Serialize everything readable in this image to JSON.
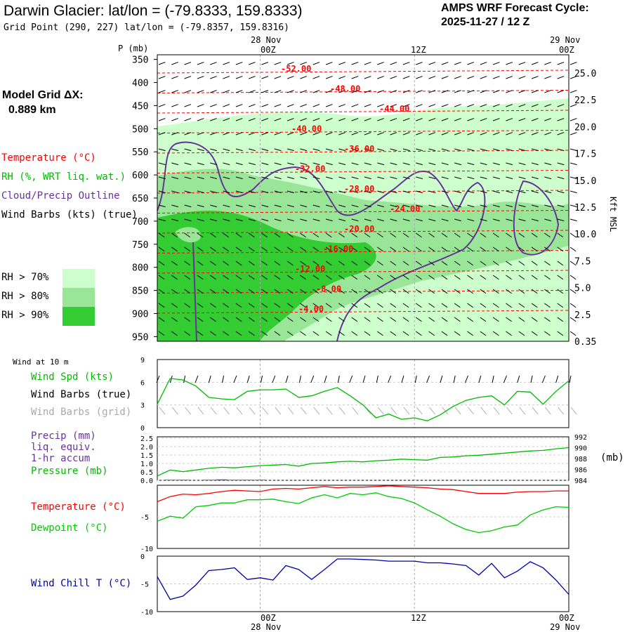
{
  "header": {
    "title": "Darwin Glacier:  lat/lon = (-79.8333, 159.8333)",
    "grid_point": "Grid Point (290, 227) lat/lon = (-79.8357, 159.8316)",
    "cycle_line1": "AMPS WRF Forecast Cycle:",
    "cycle_line2": "2025-11-27 / 12  Z"
  },
  "left_panel": {
    "model_grid_label": "Model Grid ΔX:",
    "model_grid_value": "0.889 km",
    "temperature_label": "Temperature (°C)",
    "rh_label": "RH (%, WRT liq. wat.)",
    "cloud_label": "Cloud/Precip Outline",
    "wind_label": "Wind Barbs (kts) (true)",
    "rh70": "RH > 70%",
    "rh80": "RH > 80%",
    "rh90": "RH > 90%"
  },
  "colors": {
    "rh70": "#ccffcc",
    "rh80": "#99e699",
    "rh90": "#33cc33",
    "temperature": "#ff0000",
    "cloud": "#663399",
    "wind_speed": "#00bb00",
    "dewpoint": "#00cc00",
    "wind_chill": "#0000aa",
    "grid_barbs": "#aaaaaa",
    "precip": "#663399"
  },
  "time_axis": {
    "top_dates": [
      "28 Nov",
      "29 Nov"
    ],
    "ticks": [
      "00Z",
      "12Z",
      "00Z"
    ],
    "bottom_dates": [
      "28 Nov",
      "29 Nov"
    ]
  },
  "chart_data": [
    {
      "type": "area",
      "name": "time-height cross section",
      "xlabel": "",
      "ylabel": "P (mb)",
      "y2label": "Kft MSL",
      "pressure_ticks": [
        "350",
        "400",
        "450",
        "500",
        "550",
        "600",
        "650",
        "700",
        "750",
        "800",
        "850",
        "900",
        "950"
      ],
      "height_ticks": [
        "25.0",
        "22.5",
        "20.0",
        "17.5",
        "15.0",
        "12.5",
        "10.0",
        "7.5",
        "5.0",
        "2.5",
        "0.35"
      ],
      "temperature_labels": [
        "-52.00",
        "-48.00",
        "-44.00",
        "-40.00",
        "-36.00",
        "-32.00",
        "-28.00",
        "-24.00",
        "-20.00",
        "-16.00",
        "-12.00",
        "-8.00",
        "-4.00"
      ],
      "temperature_values": [
        -52,
        -48,
        -44,
        -40,
        -36,
        -32,
        -28,
        -24,
        -20,
        -16,
        -12,
        -8,
        -4
      ]
    },
    {
      "type": "line",
      "name": "Wind at 10 m",
      "panel_title": "Wind at 10 m",
      "legend": [
        "Wind Spd (kts)",
        "Wind Barbs (true)",
        "Wind Barbs (grid)"
      ],
      "y_ticks": [
        "9",
        "6",
        "3",
        "0"
      ],
      "ylim": [
        0,
        9
      ],
      "series": [
        {
          "values": [
            3.1,
            6.5,
            6.3,
            5.5,
            4.0,
            3.8,
            3.7,
            4.8,
            5.0,
            5.0,
            5.1,
            4.0,
            4.2,
            4.8,
            5.3,
            4.2,
            3.0,
            1.3,
            1.8,
            1.1,
            1.3,
            0.9,
            1.7,
            2.8,
            3.6,
            4.0,
            4.2,
            3.0,
            4.8,
            4.7,
            3.1,
            4.8,
            6.2
          ]
        }
      ]
    },
    {
      "type": "line",
      "name": "Precip / Pressure",
      "legend": [
        "Precip (mm)",
        "liq. equiv.",
        "1-hr accum",
        "Pressure (mb)"
      ],
      "y_ticks_left": [
        "2.5",
        "2.0",
        "1.5",
        "1.0",
        "0.5",
        "0.0"
      ],
      "y_ticks_right": [
        "992",
        "990",
        "988",
        "986",
        "984"
      ],
      "y_right_unit": "(mb)",
      "series": [
        {
          "values": [
            984.8,
            985.9,
            985.6,
            985.9,
            986.2,
            986.4,
            986.3,
            986.5,
            986.7,
            986.8,
            986.9,
            986.6,
            987.1,
            987.2,
            987.4,
            987.5,
            987.4,
            987.6,
            987.7,
            987.9,
            987.8,
            987.7,
            988.2,
            988.3,
            988.5,
            988.6,
            988.8,
            989.0,
            989.2,
            989.4,
            989.5,
            989.8,
            990.0
          ]
        },
        {
          "values": [
            0,
            0.03,
            0.03,
            0,
            0.03,
            0.05,
            0.03,
            0.03,
            0.03,
            0,
            0,
            0,
            0,
            0,
            0,
            0,
            0,
            0,
            0,
            0,
            0,
            0,
            0,
            0,
            0,
            0,
            0,
            0,
            0,
            0,
            0,
            0,
            0
          ]
        }
      ]
    },
    {
      "type": "line",
      "name": "Temperature / Dewpoint",
      "legend": [
        "Temperature (°C)",
        "Dewpoint (°C)"
      ],
      "y_ticks": [
        "-5",
        "-10"
      ],
      "ylim": [
        -10,
        0
      ],
      "series": [
        {
          "values": [
            -2.6,
            -1.8,
            -1.4,
            -1.5,
            -1.3,
            -1.0,
            -0.8,
            -0.9,
            -1.0,
            -0.6,
            -0.5,
            -0.6,
            -0.4,
            -0.2,
            -0.4,
            -0.3,
            -0.3,
            -0.2,
            -0.1,
            -0.2,
            -0.3,
            -0.4,
            -0.6,
            -0.7,
            -1.0,
            -1.3,
            -1.3,
            -1.3,
            -1.1,
            -1.0,
            -1.0,
            -0.9,
            -0.9
          ]
        },
        {
          "values": [
            -5.7,
            -4.9,
            -5.2,
            -3.4,
            -3.2,
            -2.8,
            -2.8,
            -2.3,
            -2.3,
            -2.2,
            -2.6,
            -2.9,
            -2.0,
            -1.5,
            -2.0,
            -1.3,
            -1.5,
            -1.2,
            -1.8,
            -2.1,
            -2.8,
            -3.9,
            -4.9,
            -6.1,
            -7.0,
            -7.5,
            -7.2,
            -6.6,
            -6.3,
            -4.7,
            -3.9,
            -3.4,
            -3.5
          ]
        }
      ]
    },
    {
      "type": "line",
      "name": "Wind Chill",
      "legend": [
        "Wind Chill T (°C)"
      ],
      "y_ticks": [
        "0",
        "-5",
        "-10"
      ],
      "ylim": [
        -10,
        0
      ],
      "series": [
        {
          "values": [
            -3.7,
            -7.8,
            -7.2,
            -5.2,
            -2.6,
            -2.4,
            -2.1,
            -4.2,
            -3.9,
            -4.3,
            -1.7,
            -2.4,
            -4.2,
            -2.4,
            -0.5,
            -0.5,
            -0.6,
            -0.7,
            -0.9,
            -0.9,
            -0.9,
            -1.2,
            -1.2,
            -1.4,
            -1.7,
            -3.4,
            -1.3,
            -3.9,
            -2.7,
            -1.0,
            -2.1,
            -4.3,
            -6.9
          ]
        }
      ]
    }
  ]
}
